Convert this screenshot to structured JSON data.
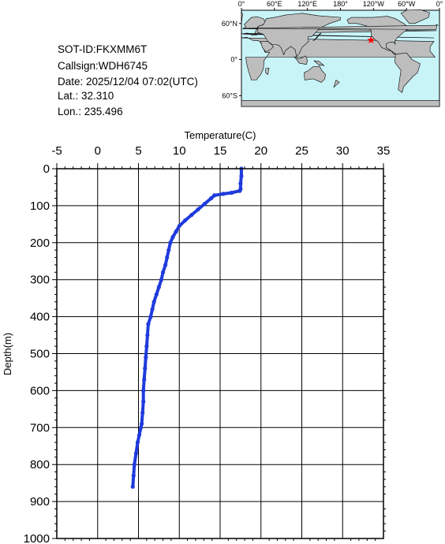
{
  "info": {
    "sot_id": "SOT-ID:FKXMM6T",
    "callsign": "Callsign:WDH6745",
    "date": "Date:  2025/12/04 07:02(UTC)",
    "lat": "Lat.:   32.310",
    "lon": "Lon.:  235.496"
  },
  "map": {
    "lon_labels": [
      "0°",
      "60°E",
      "120°E",
      "180°",
      "120°W",
      "60°W",
      "0°"
    ],
    "lat_labels": [
      "60°N",
      "0°",
      "60°S"
    ],
    "ocean_color": "#c8f4f8",
    "land_color": "#bdbdbd",
    "marker_color": "#ff0000",
    "marker_lon": 235.496,
    "marker_lat": 32.31
  },
  "chart_data": {
    "type": "line",
    "xlabel": "Temperature(C)",
    "ylabel": "Depth(m)",
    "xlim": [
      -5,
      35
    ],
    "ylim": [
      1000,
      0
    ],
    "x_ticks": [
      "-5",
      "0",
      "5",
      "10",
      "15",
      "20",
      "25",
      "30",
      "35"
    ],
    "y_ticks": [
      "0",
      "100",
      "200",
      "300",
      "400",
      "500",
      "600",
      "700",
      "800",
      "900",
      "1000"
    ],
    "grid": true,
    "series": [
      {
        "color": "#1f3bdc",
        "temperature": [
          17.6,
          17.6,
          17.5,
          17.5,
          17.4,
          16.4,
          15.4,
          14.3,
          13.9,
          13.1,
          12.3,
          11.5,
          10.7,
          10.0,
          9.6,
          9.2,
          8.9,
          8.7,
          8.5,
          8.3,
          8.0,
          7.8,
          7.5,
          7.2,
          6.9,
          6.7,
          6.5,
          6.2,
          6.1,
          6.0,
          5.9,
          5.8,
          5.7,
          5.6,
          5.6,
          5.5,
          5.4,
          5.3,
          5.1,
          4.9,
          4.7,
          4.5,
          4.4,
          4.3
        ],
        "depth": [
          0,
          20,
          40,
          55,
          60,
          65,
          68,
          72,
          80,
          95,
          110,
          125,
          140,
          155,
          170,
          185,
          200,
          220,
          240,
          260,
          280,
          300,
          320,
          340,
          360,
          380,
          400,
          420,
          450,
          480,
          510,
          540,
          570,
          600,
          630,
          660,
          690,
          700,
          720,
          740,
          770,
          800,
          830,
          860
        ]
      }
    ]
  }
}
